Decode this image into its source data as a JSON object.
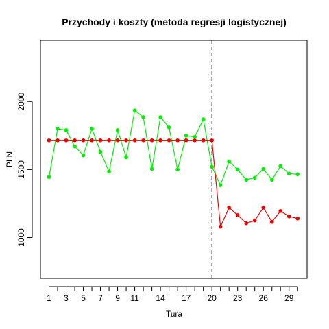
{
  "chart_data": {
    "type": "line",
    "title": "Przychody i koszty (metoda regresji logistycznej)",
    "xlabel": "Tura",
    "ylabel": "PLN",
    "xlim": [
      0,
      31.1
    ],
    "ylim": [
      700,
      2450
    ],
    "x_ticks": [
      1,
      3,
      5,
      7,
      9,
      11,
      14,
      17,
      20,
      23,
      26,
      29
    ],
    "y_ticks": [
      1000,
      1500,
      2000
    ],
    "vline": {
      "x": 20,
      "style": "dashed"
    },
    "grid": false,
    "x": [
      1,
      2,
      3,
      4,
      5,
      6,
      7,
      8,
      9,
      10,
      11,
      12,
      13,
      14,
      15,
      16,
      17,
      18,
      19,
      20,
      21,
      22,
      23,
      24,
      25,
      26,
      27,
      28,
      29,
      30
    ],
    "series": [
      {
        "color": "#00ee00",
        "values": [
          1445,
          1800,
          1790,
          1670,
          1605,
          1800,
          1630,
          1485,
          1790,
          1590,
          1935,
          1885,
          1505,
          1885,
          1810,
          1500,
          1750,
          1740,
          1870,
          1520,
          1385,
          1560,
          1500,
          1425,
          1440,
          1505,
          1425,
          1525,
          1470,
          1465
        ]
      },
      {
        "color": "#ee0000",
        "values": [
          1715,
          1715,
          1715,
          1715,
          1715,
          1715,
          1715,
          1715,
          1715,
          1715,
          1715,
          1715,
          1715,
          1715,
          1715,
          1715,
          1715,
          1715,
          1715,
          1715,
          1080,
          1220,
          1165,
          1105,
          1125,
          1220,
          1115,
          1195,
          1155,
          1140
        ]
      }
    ]
  }
}
